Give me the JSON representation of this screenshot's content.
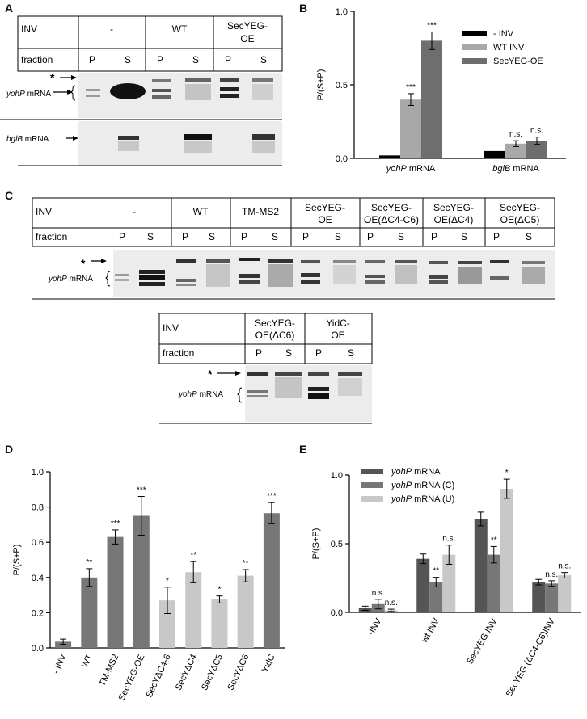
{
  "panel_labels": {
    "a": "A",
    "b": "B",
    "c": "C",
    "d": "D",
    "e": "E"
  },
  "colors": {
    "band_dark": "#202020",
    "band_mid": "#5a5a5a",
    "band_light": "#8a8a8a",
    "bar_black": "#000000",
    "bar_gray": "#a8a8a8",
    "bar_dark": "#6e6e6e",
    "bar_dark2": "#555555",
    "bar_mid": "#777777",
    "bar_light": "#c8c8c8",
    "gel_bg": "#ebebeb"
  },
  "panel_a": {
    "row_inv": "INV",
    "row_fraction": "fraction",
    "groups": [
      "-",
      "WT",
      "SecYEG-\nOE"
    ],
    "fractions": [
      "P",
      "S",
      "P",
      "S",
      "P",
      "S"
    ],
    "asterisk": "*",
    "label_top": "yohP",
    "label_top_suffix": " mRNA",
    "label_bottom": "bglB",
    "label_bottom_suffix": " mRNA"
  },
  "panel_c": {
    "row_inv": "INV",
    "row_fraction": "fraction",
    "groups": [
      "-",
      "WT",
      "TM-MS2",
      "SecYEG-\nOE",
      "SecYEG-\nOE(ΔC4-C6)",
      "SecYEG-\nOE(ΔC4)",
      "SecYEG-\nOE(ΔC5)"
    ],
    "fractions": [
      "P",
      "S",
      "P",
      "S",
      "P",
      "S",
      "P",
      "S",
      "P",
      "S",
      "P",
      "S",
      "P",
      "S"
    ],
    "asterisk": "*",
    "label": "yohP",
    "label_suffix": " mRNA",
    "sub": {
      "row_inv": "INV",
      "row_fraction": "fraction",
      "groups": [
        "SecYEG-\nOE(ΔC6)",
        "YidC-\nOE"
      ],
      "fractions": [
        "P",
        "S",
        "P",
        "S"
      ],
      "asterisk": "*",
      "label": "yohP",
      "label_suffix": " mRNA"
    }
  },
  "chart_data": [
    {
      "id": "B",
      "type": "bar",
      "categories": [
        "yohP mRNA",
        "bglB mRNA"
      ],
      "series": [
        {
          "name": "- INV",
          "values": [
            0.02,
            0.05
          ],
          "errors": [
            0.0,
            0.0
          ],
          "sig": [
            "",
            ""
          ]
        },
        {
          "name": "WT INV",
          "values": [
            0.4,
            0.1
          ],
          "errors": [
            0.04,
            0.02
          ],
          "sig": [
            "***",
            "n.s."
          ]
        },
        {
          "name": "SecYEG-OE",
          "values": [
            0.8,
            0.12
          ],
          "errors": [
            0.06,
            0.025
          ],
          "sig": [
            "***",
            "n.s."
          ]
        }
      ],
      "ylabel": "P/(S+P)",
      "ylim": [
        0,
        1.0
      ],
      "yticks": [
        "0.0",
        "0.5",
        "1.0"
      ],
      "legend": "top-right"
    },
    {
      "id": "D",
      "type": "bar",
      "categories": [
        "- INV",
        "WT",
        "TM-MS2",
        "SecYEG-OE",
        "SecYΔC4-6",
        "SecYΔC4",
        "SecYΔC5",
        "SecYΔC6",
        "YidC"
      ],
      "values": [
        0.035,
        0.4,
        0.63,
        0.75,
        0.27,
        0.43,
        0.275,
        0.41,
        0.765
      ],
      "errors": [
        0.015,
        0.05,
        0.04,
        0.11,
        0.075,
        0.06,
        0.02,
        0.035,
        0.06
      ],
      "sig": [
        "",
        "**",
        "***",
        "***",
        "*",
        "**",
        "*",
        "**",
        "***"
      ],
      "bar_shade": [
        "dark",
        "dark",
        "dark",
        "dark",
        "light",
        "light",
        "light",
        "light",
        "dark"
      ],
      "ylabel": "P/(S+P)",
      "ylim": [
        0,
        1.0
      ],
      "yticks": [
        "0.0",
        "0.2",
        "0.4",
        "0.6",
        "0.8",
        "1.0"
      ]
    },
    {
      "id": "E",
      "type": "bar",
      "categories": [
        "-INV",
        "wt INV",
        "SecYEG INV",
        "SecYEG (ΔC4-C6)INV"
      ],
      "series": [
        {
          "name": "yohP mRNA",
          "values": [
            0.03,
            0.39,
            0.68,
            0.22
          ],
          "errors": [
            0.015,
            0.035,
            0.05,
            0.02
          ],
          "sig": [
            "",
            "",
            "",
            ""
          ]
        },
        {
          "name": "yohP mRNA (C)",
          "values": [
            0.06,
            0.22,
            0.42,
            0.21
          ],
          "errors": [
            0.035,
            0.035,
            0.06,
            0.02
          ],
          "sig": [
            "n.s.",
            "**",
            "**",
            "n.s."
          ]
        },
        {
          "name": "yohP mRNA (U)",
          "values": [
            0.015,
            0.42,
            0.9,
            0.27
          ],
          "errors": [
            0.008,
            0.07,
            0.07,
            0.02
          ],
          "sig": [
            "n.s.",
            "n.s.",
            "*",
            "n.s."
          ]
        }
      ],
      "ylabel": "P/(S+P)",
      "ylim": [
        0,
        1.0
      ],
      "yticks": [
        "0.0",
        "0.5",
        "1.0"
      ],
      "legend": "top-left"
    }
  ]
}
